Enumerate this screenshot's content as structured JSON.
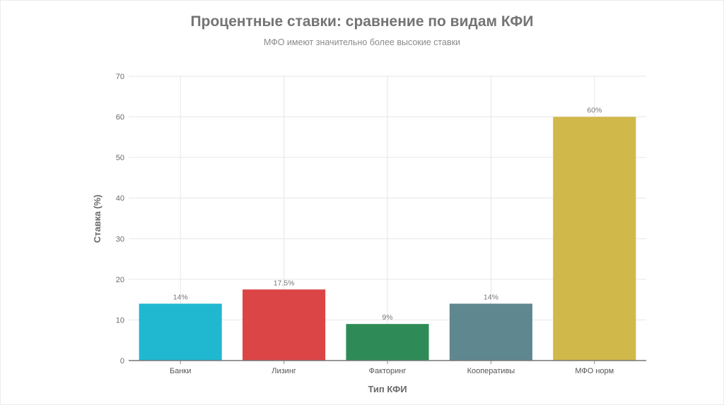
{
  "chart_data": {
    "type": "bar",
    "title": "Процентные ставки: сравнение по видам КФИ",
    "subtitle": "МФО имеют значительно более высокие ставки",
    "xlabel": "Тип КФИ",
    "ylabel": "Ставка (%)",
    "ylim": [
      0,
      70
    ],
    "yticks": [
      0,
      10,
      20,
      30,
      40,
      50,
      60,
      70
    ],
    "grid": true,
    "categories": [
      "Банки",
      "Лизинг",
      "Факторинг",
      "Кооперативы",
      "МФО норм"
    ],
    "values": [
      14,
      17.5,
      9,
      14,
      60
    ],
    "data_labels": [
      "14%",
      "17.5%",
      "9%",
      "14%",
      "60%"
    ],
    "colors": [
      "#20b8d0",
      "#dc4546",
      "#2e8b57",
      "#5f8790",
      "#d1b84a"
    ]
  }
}
